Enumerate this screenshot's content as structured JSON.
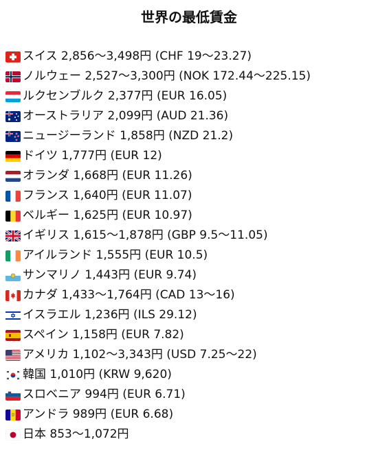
{
  "title": "世界の最低賃金",
  "rows": [
    {
      "flag": "switzerland-flag-icon",
      "text": "スイス 2,856〜3,498円 (CHF 19〜23.27)"
    },
    {
      "flag": "norway-flag-icon",
      "text": "ノルウェー 2,527〜3,300円 (NOK 172.44〜225.15)"
    },
    {
      "flag": "luxembourg-flag-icon",
      "text": "ルクセンブルク 2,377円 (EUR 16.05)"
    },
    {
      "flag": "australia-flag-icon",
      "text": "オーストラリア 2,099円 (AUD 21.36)"
    },
    {
      "flag": "new-zealand-flag-icon",
      "text": "ニュージーランド 1,858円 (NZD 21.2)"
    },
    {
      "flag": "germany-flag-icon",
      "text": "ドイツ 1,777円 (EUR 12)"
    },
    {
      "flag": "netherlands-flag-icon",
      "text": "オランダ 1,668円 (EUR 11.26)"
    },
    {
      "flag": "france-flag-icon",
      "text": "フランス 1,640円 (EUR 11.07)"
    },
    {
      "flag": "belgium-flag-icon",
      "text": "ベルギー 1,625円 (EUR 10.97)"
    },
    {
      "flag": "uk-flag-icon",
      "text": "イギリス 1,615〜1,878円 (GBP 9.5〜11.05)"
    },
    {
      "flag": "ireland-flag-icon",
      "text": "アイルランド 1,555円 (EUR 10.5)"
    },
    {
      "flag": "san-marino-flag-icon",
      "text": "サンマリノ 1,443円 (EUR 9.74)"
    },
    {
      "flag": "canada-flag-icon",
      "text": "カナダ 1,433〜1,764円 (CAD 13〜16)"
    },
    {
      "flag": "israel-flag-icon",
      "text": "イスラエル 1,236円 (ILS 29.12)"
    },
    {
      "flag": "spain-flag-icon",
      "text": "スペイン 1,158円 (EUR 7.82)"
    },
    {
      "flag": "usa-flag-icon",
      "text": "アメリカ 1,102〜3,343円 (USD 7.25〜22)"
    },
    {
      "flag": "south-korea-flag-icon",
      "text": "韓国 1,010円 (KRW 9,620)"
    },
    {
      "flag": "slovenia-flag-icon",
      "text": "スロベニア 994円 (EUR 6.71)"
    },
    {
      "flag": "andorra-flag-icon",
      "text": "アンドラ 989円 (EUR 6.68)"
    },
    {
      "flag": "japan-flag-icon",
      "text": "日本 853〜1,072円"
    }
  ],
  "colors": {
    "text": "#111111",
    "background": "#ffffff"
  }
}
